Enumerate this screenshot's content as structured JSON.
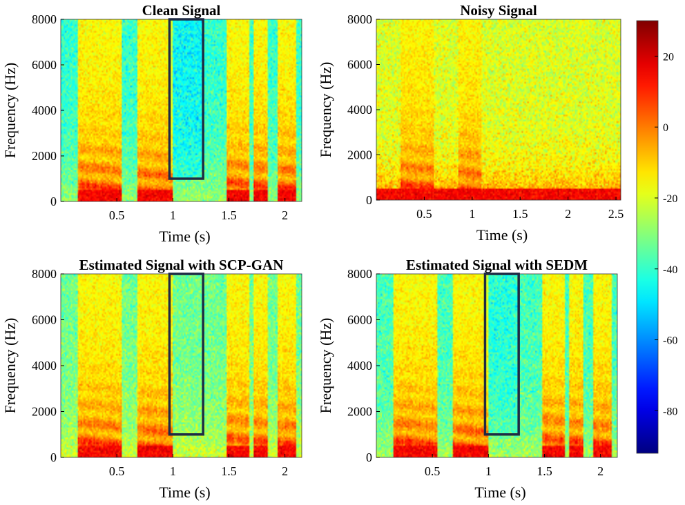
{
  "chart_data": {
    "type": "heatmap",
    "kind": "spectrogram",
    "colormap": "jet",
    "colorbar": {
      "range": [
        -92,
        30
      ],
      "ticks": [
        20,
        0,
        -20,
        -40,
        -60,
        -80
      ],
      "tick_labels": [
        "20",
        "0",
        "-20",
        "-40",
        "-60",
        "-80"
      ]
    },
    "panels": [
      {
        "title": "Clean Signal",
        "xlabel": "Time (s)",
        "ylabel": "Frequency (Hz)",
        "xlim": [
          0.0,
          2.15
        ],
        "ylim": [
          0,
          8000
        ],
        "xticks": [
          0.5,
          1,
          1.5,
          2
        ],
        "xtick_labels": [
          "0.5",
          "1",
          "1.5",
          "2"
        ],
        "yticks": [
          0,
          2000,
          4000,
          6000,
          8000
        ],
        "ytick_labels": [
          "0",
          "2000",
          "4000",
          "6000",
          "8000"
        ],
        "noise_level": -40,
        "highlight_box": {
          "t0": 0.97,
          "t1": 1.27,
          "f0": 1000,
          "f1": 8000
        },
        "speech_segments": [
          [
            0.15,
            0.55
          ],
          [
            0.68,
            1.0
          ],
          [
            1.48,
            1.68
          ],
          [
            1.72,
            1.85
          ],
          [
            1.93,
            2.1
          ]
        ]
      },
      {
        "title": "Noisy Signal",
        "xlabel": "Time (s)",
        "ylabel": "Frequency (Hz)",
        "xlim": [
          0.0,
          2.55
        ],
        "ylim": [
          0,
          8000
        ],
        "xticks": [
          0.5,
          1,
          1.5,
          2,
          2.5
        ],
        "xtick_labels": [
          "0.5",
          "1",
          "1.5",
          "2",
          "2.5"
        ],
        "yticks": [
          0,
          2000,
          4000,
          6000,
          8000
        ],
        "ytick_labels": [
          "0",
          "2000",
          "4000",
          "6000",
          "8000"
        ],
        "noise_level": -20,
        "highlight_box": null,
        "speech_segments": [
          [
            0.25,
            0.6
          ],
          [
            0.85,
            1.1
          ]
        ]
      },
      {
        "title": "Estimated Signal with SCP-GAN",
        "xlabel": "Time (s)",
        "ylabel": "Frequency (Hz)",
        "xlim": [
          0.0,
          2.15
        ],
        "ylim": [
          0,
          8000
        ],
        "xticks": [
          0.5,
          1,
          1.5,
          2
        ],
        "xtick_labels": [
          "0.5",
          "1",
          "1.5",
          "2"
        ],
        "yticks": [
          0,
          2000,
          4000,
          6000,
          8000
        ],
        "ytick_labels": [
          "0",
          "2000",
          "4000",
          "6000",
          "8000"
        ],
        "noise_level": -33,
        "highlight_box": {
          "t0": 0.97,
          "t1": 1.27,
          "f0": 1000,
          "f1": 8000
        },
        "speech_segments": [
          [
            0.15,
            0.55
          ],
          [
            0.68,
            1.0
          ],
          [
            1.48,
            1.68
          ],
          [
            1.72,
            1.85
          ],
          [
            1.93,
            2.1
          ]
        ]
      },
      {
        "title": "Estimated Signal with SEDM",
        "xlabel": "Time (s)",
        "ylabel": "Frequency (Hz)",
        "xlim": [
          0.0,
          2.15
        ],
        "ylim": [
          0,
          8000
        ],
        "xticks": [
          0.5,
          1,
          1.5,
          2
        ],
        "xtick_labels": [
          "0.5",
          "1",
          "1.5",
          "2"
        ],
        "yticks": [
          0,
          2000,
          4000,
          6000,
          8000
        ],
        "ytick_labels": [
          "0",
          "2000",
          "4000",
          "6000",
          "8000"
        ],
        "noise_level": -38,
        "highlight_box": {
          "t0": 0.97,
          "t1": 1.27,
          "f0": 1000,
          "f1": 8000
        },
        "speech_segments": [
          [
            0.15,
            0.55
          ],
          [
            0.68,
            1.0
          ],
          [
            1.48,
            1.68
          ],
          [
            1.72,
            1.85
          ],
          [
            1.93,
            2.1
          ]
        ]
      }
    ]
  }
}
